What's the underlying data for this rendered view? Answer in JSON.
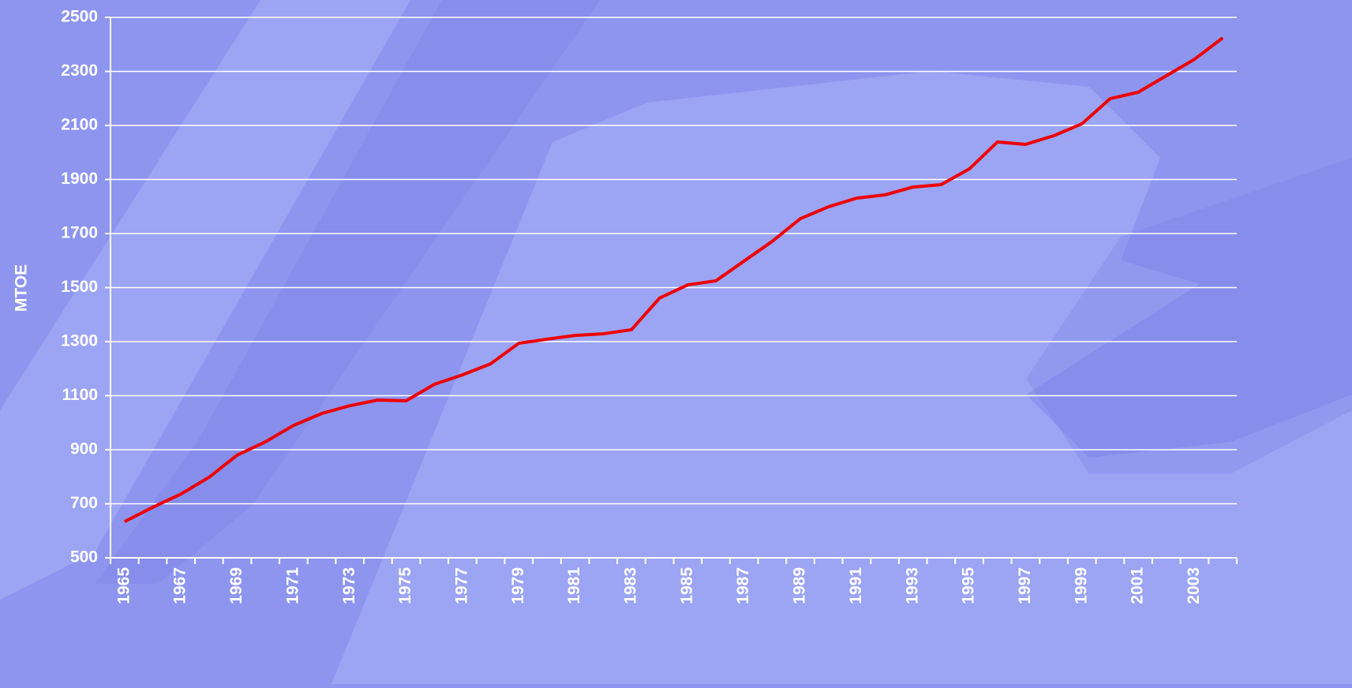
{
  "chart_data": {
    "type": "line",
    "y_label": "MTOE",
    "categories": [
      "1965",
      null,
      "1967",
      null,
      "1969",
      null,
      "1971",
      null,
      "1973",
      null,
      "1975",
      null,
      "1977",
      null,
      "1979",
      null,
      "1981",
      null,
      "1983",
      null,
      "1985",
      null,
      "1987",
      null,
      "1989",
      null,
      "1991",
      null,
      "1993",
      null,
      "1995",
      null,
      "1997",
      null,
      "1999",
      null,
      "2001",
      null,
      "2003",
      null
    ],
    "series": [
      {
        "color": "#ee0000",
        "values": [
          634,
          687,
          736,
          798,
          880,
          929,
          990,
          1034,
          1063,
          1084,
          1081,
          1142,
          1177,
          1218,
          1294,
          1309,
          1323,
          1329,
          1344,
          1461,
          1510,
          1525,
          1598,
          1671,
          1755,
          1799,
          1831,
          1843,
          1872,
          1881,
          1939,
          2039,
          2030,
          2062,
          2106,
          2199,
          2223,
          2284,
          2345,
          2424
        ]
      }
    ],
    "ylim": [
      500,
      2500
    ],
    "yticks": [
      500,
      700,
      900,
      1100,
      1300,
      1500,
      1700,
      1900,
      2100,
      2300,
      2500
    ],
    "grid": true
  }
}
